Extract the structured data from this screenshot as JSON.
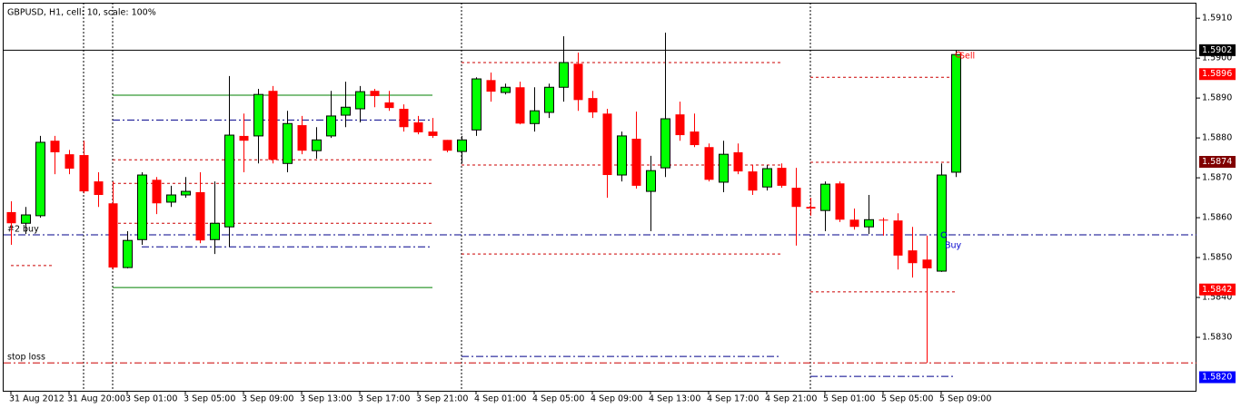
{
  "chart_data": {
    "type": "candlestick",
    "title": "GBPUSD, H1, cell: 10, scale: 100%",
    "open": [
      1.58614,
      1.58586,
      1.58605,
      1.58793,
      1.58759,
      1.58757,
      1.58691,
      1.58636,
      1.58475,
      1.58545,
      1.58695,
      1.58639,
      1.58657,
      1.58664,
      1.58545,
      1.58577,
      1.58805,
      1.58805,
      1.58918,
      1.58736,
      1.58832,
      1.58768,
      1.58805,
      1.58857,
      1.58873,
      1.58918,
      1.58889,
      1.58873,
      1.58839,
      1.58816,
      1.58795,
      1.58766,
      1.5882,
      1.58945,
      1.58914,
      1.58927,
      1.58836,
      1.58864,
      1.58927,
      1.58986,
      1.589,
      1.58861,
      1.58707,
      1.58798,
      1.58666,
      1.58725,
      1.58859,
      1.58816,
      1.58777,
      1.58689,
      1.58764,
      1.58716,
      1.58677,
      1.58725,
      1.58675,
      1.58627,
      1.58618,
      1.58686,
      1.58595,
      1.58577,
      1.58595,
      1.58593,
      1.58518,
      1.58495,
      1.58466,
      1.58714
    ],
    "high": [
      1.58641,
      1.58627,
      1.58805,
      1.58805,
      1.5877,
      1.58793,
      1.58714,
      1.58691,
      1.58566,
      1.58714,
      1.58702,
      1.5868,
      1.58702,
      1.58714,
      1.58691,
      1.58955,
      1.58861,
      1.58923,
      1.5893,
      1.58868,
      1.58855,
      1.58827,
      1.58918,
      1.58941,
      1.5893,
      1.58923,
      1.58918,
      1.58884,
      1.58855,
      1.5885,
      1.58795,
      1.58805,
      1.58952,
      1.58964,
      1.58936,
      1.58941,
      1.58927,
      1.58936,
      1.59055,
      1.59014,
      1.58918,
      1.58873,
      1.58816,
      1.58866,
      1.58755,
      1.59064,
      1.58891,
      1.58861,
      1.58786,
      1.58793,
      1.58786,
      1.58732,
      1.58732,
      1.58736,
      1.58725,
      1.5865,
      1.58691,
      1.58691,
      1.58623,
      1.58657,
      1.586,
      1.58611,
      1.58577,
      1.58555,
      1.58736,
      1.5902
    ],
    "low": [
      1.58532,
      1.58559,
      1.586,
      1.58709,
      1.58709,
      1.58661,
      1.58627,
      1.5847,
      1.58473,
      1.58532,
      1.58609,
      1.58627,
      1.5865,
      1.58536,
      1.58509,
      1.58527,
      1.58714,
      1.58736,
      1.58736,
      1.58714,
      1.58759,
      1.58748,
      1.588,
      1.58827,
      1.58839,
      1.58877,
      1.58868,
      1.58816,
      1.58809,
      1.588,
      1.58764,
      1.58736,
      1.58805,
      1.58891,
      1.58909,
      1.58834,
      1.58816,
      1.5885,
      1.58891,
      1.58868,
      1.5885,
      1.5865,
      1.58691,
      1.58673,
      1.58566,
      1.58702,
      1.58793,
      1.58777,
      1.58691,
      1.58664,
      1.58709,
      1.58657,
      1.58668,
      1.58675,
      1.5853,
      1.58605,
      1.58566,
      1.58589,
      1.5857,
      1.58559,
      1.58555,
      1.5847,
      1.5845,
      1.58236,
      1.58464,
      1.58702
    ],
    "close": [
      1.58586,
      1.58607,
      1.58789,
      1.58764,
      1.58723,
      1.58666,
      1.58657,
      1.58475,
      1.58543,
      1.58707,
      1.58636,
      1.58657,
      1.58666,
      1.58543,
      1.58586,
      1.58807,
      1.58793,
      1.58909,
      1.58745,
      1.58836,
      1.58768,
      1.58795,
      1.58855,
      1.58877,
      1.58916,
      1.58905,
      1.58875,
      1.58827,
      1.58814,
      1.58805,
      1.58768,
      1.58795,
      1.58948,
      1.58916,
      1.58927,
      1.58836,
      1.58868,
      1.58927,
      1.58989,
      1.58895,
      1.58864,
      1.58707,
      1.58805,
      1.5868,
      1.58718,
      1.58848,
      1.58807,
      1.58782,
      1.58695,
      1.58759,
      1.58716,
      1.58668,
      1.58723,
      1.5868,
      1.58627,
      1.58623,
      1.58684,
      1.58595,
      1.58577,
      1.58595,
      1.58593,
      1.58505,
      1.58486,
      1.58473,
      1.58707,
      1.59009
    ],
    "up_color": "#00ff00",
    "down_color": "#ff0000",
    "xticks": [
      {
        "value": 0,
        "label": "31 Aug 2012"
      },
      {
        "value": 4,
        "label": "31 Aug 20:00"
      },
      {
        "value": 8,
        "label": "3 Sep 01:00"
      },
      {
        "value": 12,
        "label": "3 Sep 05:00"
      },
      {
        "value": 16,
        "label": "3 Sep 09:00"
      },
      {
        "value": 20,
        "label": "3 Sep 13:00"
      },
      {
        "value": 24,
        "label": "3 Sep 17:00"
      },
      {
        "value": 28,
        "label": "3 Sep 21:00"
      },
      {
        "value": 32,
        "label": "4 Sep 01:00"
      },
      {
        "value": 36,
        "label": "4 Sep 05:00"
      },
      {
        "value": 40,
        "label": "4 Sep 09:00"
      },
      {
        "value": 44,
        "label": "4 Sep 13:00"
      },
      {
        "value": 48,
        "label": "4 Sep 17:00"
      },
      {
        "value": 52,
        "label": "4 Sep 21:00"
      },
      {
        "value": 56,
        "label": "5 Sep 01:00"
      },
      {
        "value": 60,
        "label": "5 Sep 05:00"
      },
      {
        "value": 64,
        "label": "5 Sep 09:00"
      }
    ],
    "ylim": [
      1.58166,
      1.59139
    ],
    "yticks": [
      {
        "value": 1.591,
        "label": "1.5910"
      },
      {
        "value": 1.59,
        "label": "1.5900"
      },
      {
        "value": 1.589,
        "label": "1.5890"
      },
      {
        "value": 1.588,
        "label": "1.5880"
      },
      {
        "value": 1.587,
        "label": "1.5870"
      },
      {
        "value": 1.586,
        "label": "1.5860"
      },
      {
        "value": 1.585,
        "label": "1.5850"
      },
      {
        "value": 1.584,
        "label": "1.5840"
      },
      {
        "value": 1.583,
        "label": "1.5830"
      }
    ],
    "price_tags": [
      {
        "value": 1.5902,
        "label": "1.5902",
        "color": "#000000"
      },
      {
        "value": 1.5896,
        "label": "1.5896",
        "color": "#ff0000"
      },
      {
        "value": 1.5874,
        "label": "1.5874",
        "color": "#800000"
      },
      {
        "value": 1.5842,
        "label": "1.5842",
        "color": "#ff0000"
      },
      {
        "value": 1.582,
        "label": "1.5820",
        "color": "#0000ff"
      }
    ],
    "levels": [
      {
        "price": 1.5902,
        "color": "#000000",
        "style": "solid"
      },
      {
        "price": 1.58557,
        "color": "#00008b",
        "style": "dashdot",
        "label": "#2 buy"
      },
      {
        "price": 1.58236,
        "color": "#cc0000",
        "style": "dashdot",
        "label": "stop loss"
      },
      {
        "price": 1.58907,
        "from": 7,
        "to": 29,
        "color": "#008000",
        "style": "solid"
      },
      {
        "price": 1.58425,
        "from": 7,
        "to": 29,
        "color": "#008000",
        "style": "solid"
      },
      {
        "price": 1.58845,
        "from": 7,
        "to": 29,
        "color": "#00008b",
        "style": "dashdot"
      },
      {
        "price": 1.58527,
        "from": 9,
        "to": 29,
        "color": "#00008b",
        "style": "dashdot"
      },
      {
        "price": 1.58745,
        "from": 7,
        "to": 29,
        "color": "#cc0000",
        "style": "dash"
      },
      {
        "price": 1.58686,
        "from": 7,
        "to": 29,
        "color": "#cc0000",
        "style": "dash"
      },
      {
        "price": 1.58586,
        "from": 7,
        "to": 29,
        "color": "#cc0000",
        "style": "dash"
      },
      {
        "price": 1.5848,
        "from": 0,
        "to": 3,
        "color": "#cc0000",
        "style": "dash"
      },
      {
        "price": 1.58989,
        "from": 31,
        "to": 53,
        "color": "#cc0000",
        "style": "dash"
      },
      {
        "price": 1.58732,
        "from": 31,
        "to": 53,
        "color": "#cc0000",
        "style": "dash"
      },
      {
        "price": 1.58509,
        "from": 31,
        "to": 53,
        "color": "#cc0000",
        "style": "dash"
      },
      {
        "price": 1.58252,
        "from": 31,
        "to": 53,
        "color": "#00008b",
        "style": "dashdot"
      },
      {
        "price": 1.58952,
        "from": 55,
        "to": 65,
        "color": "#cc0000",
        "style": "dash"
      },
      {
        "price": 1.58739,
        "from": 55,
        "to": 65,
        "color": "#cc0000",
        "style": "dash"
      },
      {
        "price": 1.58414,
        "from": 55,
        "to": 65,
        "color": "#cc0000",
        "style": "dash"
      },
      {
        "price": 1.58202,
        "from": 55,
        "to": 65,
        "color": "#00008b",
        "style": "dashdot"
      }
    ],
    "markers": [
      {
        "label": "Buy",
        "index": 64,
        "price": 1.58557,
        "color": "#0000cd"
      },
      {
        "label": "Sell",
        "index": 65,
        "price": 1.59009,
        "color": "#ff0000"
      }
    ],
    "separators": [
      5,
      7,
      31,
      55
    ]
  }
}
